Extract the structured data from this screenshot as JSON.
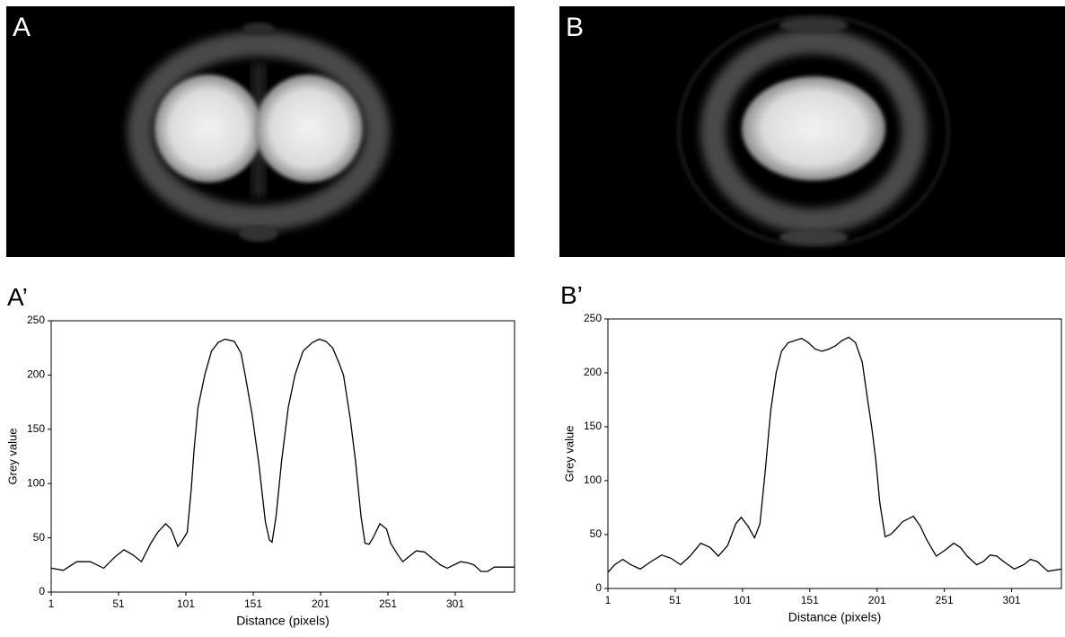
{
  "panels": {
    "a": "A",
    "b": "B"
  },
  "chart_data": [
    {
      "type": "line",
      "panel_label": "A’",
      "xlabel": "Distance (pixels)",
      "ylabel": "Grey value",
      "color": "#000000",
      "x": [
        1,
        10,
        20,
        30,
        40,
        48,
        55,
        62,
        68,
        75,
        80,
        86,
        90,
        95,
        98,
        102,
        105,
        107,
        110,
        115,
        120,
        125,
        130,
        137,
        142,
        145,
        150,
        155,
        160,
        163,
        165,
        168,
        172,
        177,
        182,
        188,
        195,
        200,
        205,
        210,
        215,
        218,
        223,
        227,
        231,
        234,
        237,
        240,
        245,
        250,
        253,
        258,
        262,
        266,
        272,
        278,
        285,
        290,
        295,
        300,
        305,
        310,
        315,
        320,
        325,
        330,
        345
      ],
      "values": [
        22,
        20,
        28,
        28,
        22,
        32,
        39,
        34,
        28,
        45,
        55,
        63,
        58,
        42,
        47,
        55,
        95,
        130,
        170,
        200,
        222,
        230,
        233,
        231,
        220,
        200,
        165,
        120,
        65,
        48,
        46,
        70,
        120,
        170,
        200,
        222,
        230,
        233,
        231,
        225,
        210,
        200,
        160,
        120,
        70,
        45,
        44,
        50,
        63,
        58,
        45,
        35,
        28,
        32,
        38,
        37,
        30,
        25,
        22,
        25,
        28,
        27,
        25,
        19,
        19,
        23,
        23
      ],
      "xlim": [
        1,
        345
      ],
      "ylim": [
        0,
        250
      ],
      "xticks": [
        1,
        51,
        101,
        151,
        201,
        251,
        301
      ],
      "yticks": [
        0,
        50,
        100,
        150,
        200,
        250
      ]
    },
    {
      "type": "line",
      "panel_label": "B’",
      "xlabel": "Distance (pixels)",
      "ylabel": "Grey value",
      "color": "#000000",
      "x": [
        1,
        6,
        12,
        18,
        25,
        33,
        41,
        48,
        55,
        62,
        70,
        77,
        83,
        90,
        96,
        100,
        105,
        110,
        114,
        118,
        122,
        126,
        130,
        135,
        140,
        145,
        150,
        155,
        160,
        165,
        170,
        175,
        180,
        185,
        190,
        194,
        197,
        200,
        203,
        207,
        211,
        215,
        220,
        228,
        233,
        238,
        245,
        251,
        258,
        263,
        268,
        275,
        280,
        285,
        290,
        295,
        303,
        310,
        315,
        320,
        328,
        338
      ],
      "values": [
        15,
        22,
        27,
        22,
        18,
        25,
        31,
        28,
        22,
        30,
        42,
        38,
        30,
        40,
        60,
        66,
        58,
        47,
        60,
        110,
        165,
        200,
        220,
        228,
        230,
        232,
        228,
        222,
        220,
        222,
        225,
        230,
        233,
        228,
        210,
        175,
        150,
        120,
        80,
        48,
        50,
        55,
        62,
        67,
        58,
        45,
        30,
        35,
        42,
        38,
        30,
        22,
        25,
        31,
        30,
        25,
        18,
        22,
        27,
        25,
        16,
        18
      ],
      "xlim": [
        1,
        338
      ],
      "ylim": [
        0,
        250
      ],
      "xticks": [
        1,
        51,
        101,
        151,
        201,
        251,
        301
      ],
      "yticks": [
        0,
        50,
        100,
        150,
        200,
        250
      ]
    }
  ]
}
